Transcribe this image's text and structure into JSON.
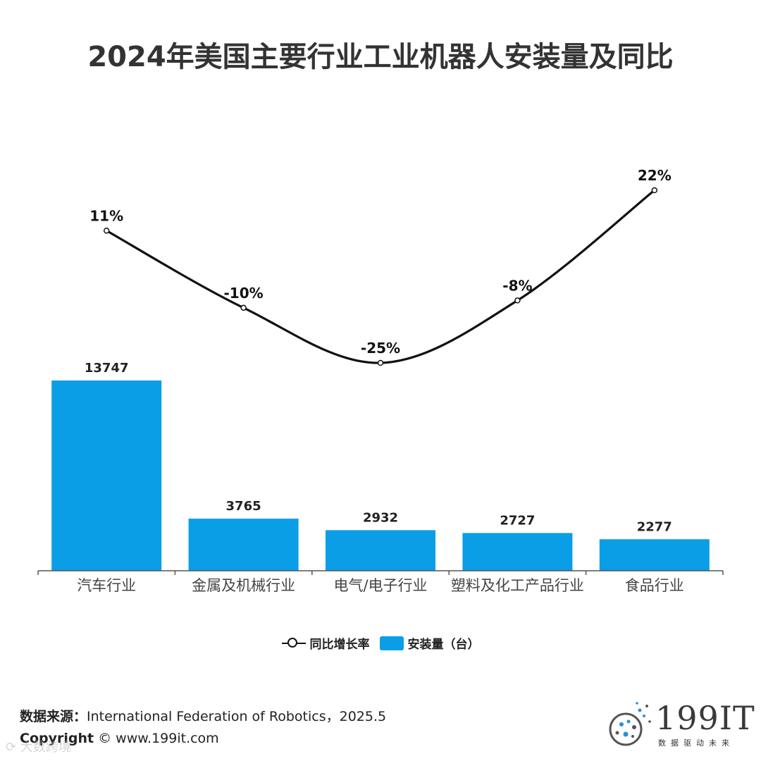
{
  "page": {
    "title": "2024年美国主要行业工业机器人安装量及同比",
    "source_label": "数据来源：",
    "source_text": "International Federation of Robotics，2025.5",
    "copyright_label": "Copyright",
    "copyright_text": "©  www.199it.com",
    "logo_text": "199IT",
    "logo_sub": "数据驱动未来",
    "watermark": "⟳ 大数跨境"
  },
  "colors": {
    "bar": "#0a9ee6",
    "line": "#111111"
  },
  "chart_data": {
    "type": "bar+line",
    "title": "2024年美国主要行业工业机器人安装量及同比",
    "categories": [
      "汽车行业",
      "金属及机械行业",
      "电气/电子行业",
      "塑料及化工产品行业",
      "食品行业"
    ],
    "series": [
      {
        "name": "安装量（台）",
        "type": "bar",
        "axis": "left",
        "values": [
          13747,
          3765,
          2932,
          2727,
          2277
        ],
        "labels": [
          "13747",
          "3765",
          "2932",
          "2727",
          "2277"
        ]
      },
      {
        "name": "同比增长率",
        "type": "line",
        "axis": "right",
        "values": [
          11,
          -10,
          -25,
          -8,
          22
        ],
        "labels": [
          "11%",
          "-10%",
          "-25%",
          "-8%",
          "22%"
        ]
      }
    ],
    "bar_ylim": [
      0,
      17000
    ],
    "line_ylim": [
      -64,
      32
    ],
    "legend": [
      "同比增长率",
      "安装量（台）"
    ],
    "legend_position": "bottom-center"
  }
}
